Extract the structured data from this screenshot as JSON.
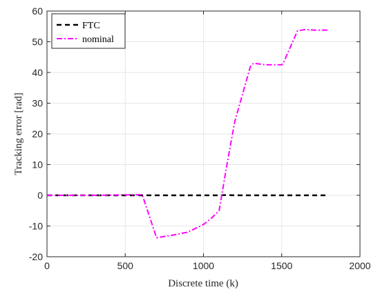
{
  "chart_data": {
    "type": "line",
    "xlabel": "Discrete time (k)",
    "ylabel": "Tracking error [rad]",
    "xlim": [
      0,
      2000
    ],
    "ylim": [
      -20,
      60
    ],
    "xticks": [
      0,
      500,
      1000,
      1500,
      2000
    ],
    "yticks": [
      -20,
      -10,
      0,
      10,
      20,
      30,
      40,
      50,
      60
    ],
    "grid": true,
    "legend_position": "top-left",
    "series": [
      {
        "name": "FTC",
        "color": "#000000",
        "style": "dashed",
        "x": [
          0,
          300,
          600,
          800,
          1000,
          1100,
          1150,
          1200,
          1400,
          1600,
          1800
        ],
        "y": [
          0,
          0,
          0,
          0,
          0,
          0,
          0.1,
          0,
          0,
          0,
          0
        ]
      },
      {
        "name": "nominal",
        "color": "#ff00ff",
        "style": "dashdot",
        "x": [
          0,
          300,
          600,
          610,
          700,
          800,
          900,
          1000,
          1050,
          1100,
          1150,
          1200,
          1250,
          1300,
          1320,
          1400,
          1500,
          1510,
          1600,
          1650,
          1700,
          1800
        ],
        "y": [
          0,
          0,
          0.2,
          0,
          -13.8,
          -13,
          -12,
          -9.5,
          -7.5,
          -5,
          10,
          24,
          33,
          42,
          43,
          42.5,
          42.5,
          43,
          53.5,
          54,
          53.8,
          53.8
        ]
      }
    ]
  }
}
